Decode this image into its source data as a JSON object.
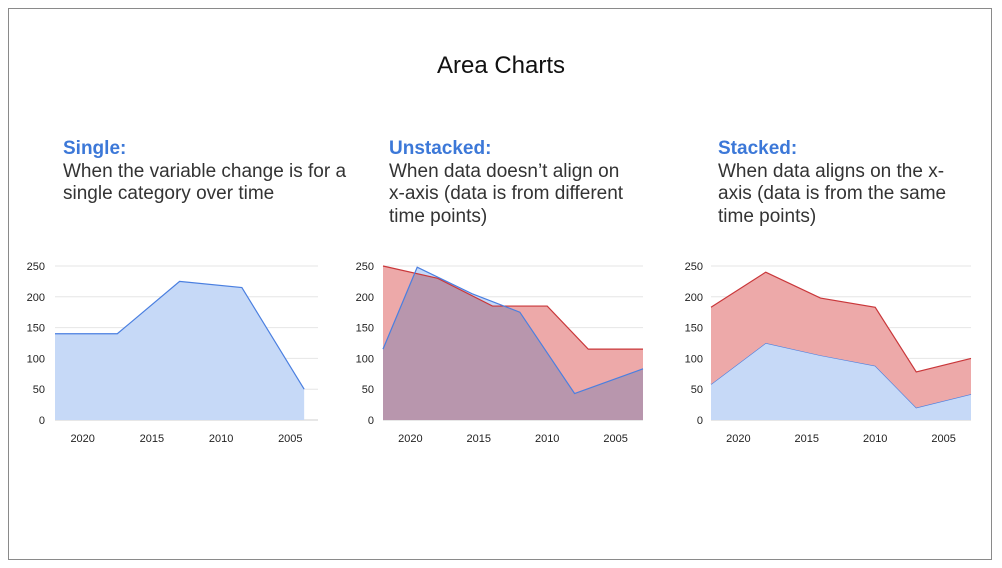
{
  "slide": {
    "title": "Area Charts"
  },
  "colors": {
    "accent": "#3c78d8",
    "blue_fill": "#c6d9f7",
    "blue_line": "#4a7fe0",
    "red_fill": "#eda9a9",
    "red_line": "#c9373a",
    "overlap_fill": "#b896ad",
    "grid": "#e6e6e6"
  },
  "panels": [
    {
      "kind": "Single:",
      "desc": "When the variable change is for a single category over time"
    },
    {
      "kind": "Unstacked:",
      "desc": "When data doesn’t align on x-axis (data is from different time points)"
    },
    {
      "kind": "Stacked:",
      "desc": "When data aligns on the x-axis (data is from the same time points)"
    }
  ],
  "chart_data": [
    {
      "type": "area",
      "x_reversed": true,
      "xlim": [
        2022,
        2003
      ],
      "ylim": [
        0,
        250
      ],
      "yticks": [
        0,
        50,
        100,
        150,
        200,
        250
      ],
      "xticks": [
        2020,
        2015,
        2010,
        2005
      ],
      "grid": true,
      "series": [
        {
          "color": "blue",
          "x": [
            2022,
            2017.5,
            2013,
            2008.5,
            2004
          ],
          "y": [
            140,
            140,
            225,
            215,
            50
          ]
        }
      ]
    },
    {
      "type": "area",
      "stacked": false,
      "x_reversed": true,
      "xlim": [
        2022,
        2003
      ],
      "ylim": [
        0,
        250
      ],
      "yticks": [
        0,
        50,
        100,
        150,
        200,
        250
      ],
      "xticks": [
        2020,
        2015,
        2010,
        2005
      ],
      "grid": true,
      "series": [
        {
          "color": "red",
          "x": [
            2022,
            2018,
            2014,
            2010,
            2007,
            2003
          ],
          "y": [
            250,
            230,
            185,
            185,
            115,
            115
          ]
        },
        {
          "color": "blue",
          "x": [
            2022,
            2019.5,
            2015.5,
            2012,
            2008,
            2003
          ],
          "y": [
            115,
            248,
            205,
            175,
            43,
            83
          ]
        }
      ]
    },
    {
      "type": "area",
      "stacked": true,
      "x_reversed": true,
      "xlim": [
        2022,
        2003
      ],
      "ylim": [
        0,
        250
      ],
      "yticks": [
        0,
        50,
        100,
        150,
        200,
        250
      ],
      "xticks": [
        2020,
        2015,
        2010,
        2005
      ],
      "grid": true,
      "x": [
        2022,
        2018,
        2014,
        2010,
        2007,
        2003
      ],
      "series": [
        {
          "color": "blue",
          "values": [
            58,
            125,
            105,
            88,
            20,
            42
          ]
        },
        {
          "color": "red",
          "values": [
            125,
            115,
            93,
            95,
            58,
            58
          ]
        }
      ]
    }
  ]
}
